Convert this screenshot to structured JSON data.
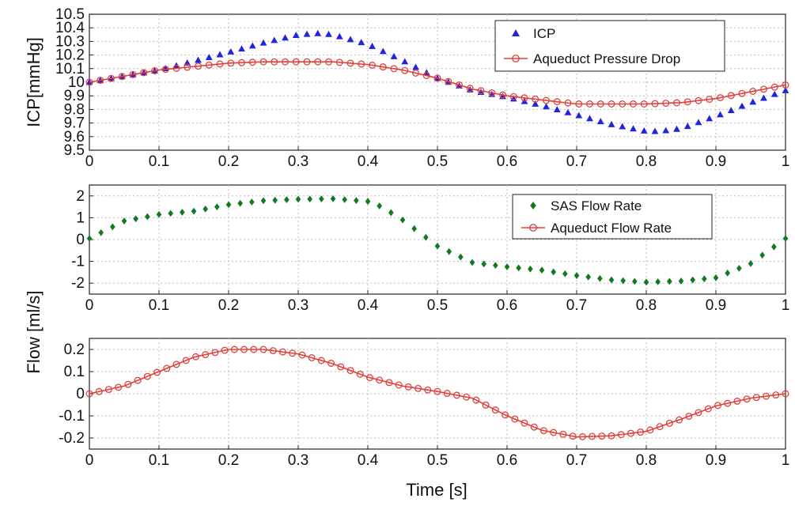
{
  "x_label": "Time [s]",
  "chart_data": [
    {
      "type": "line",
      "ylabel": "ICP[mmHg]",
      "xlim": [
        0,
        1
      ],
      "ylim": [
        9.5,
        10.5
      ],
      "grid": true,
      "legend": "top-right",
      "x_ticks": [
        "0",
        "0.1",
        "0.2",
        "0.3",
        "0.4",
        "0.5",
        "0.6",
        "0.7",
        "0.8",
        "0.9",
        "1"
      ],
      "y_ticks": [
        "10.5",
        "10.4",
        "10.3",
        "10.2",
        "10.1",
        "10",
        "9.9",
        "9.8",
        "9.7",
        "9.6",
        "9.5"
      ],
      "series": [
        {
          "name": "ICP",
          "color": "#1f24e0",
          "marker": "triangle",
          "x": [
            0,
            0.1,
            0.2,
            0.25,
            0.3,
            0.33,
            0.35,
            0.4,
            0.45,
            0.5,
            0.55,
            0.6,
            0.65,
            0.7,
            0.75,
            0.8,
            0.82,
            0.85,
            0.9,
            0.95,
            1.0
          ],
          "y": [
            10.0,
            10.09,
            10.22,
            10.29,
            10.35,
            10.36,
            10.35,
            10.28,
            10.16,
            10.03,
            9.94,
            9.89,
            9.83,
            9.76,
            9.69,
            9.64,
            9.64,
            9.66,
            9.75,
            9.85,
            9.94
          ]
        },
        {
          "name": "Aqueduct Pressure Drop",
          "color": "#e0403a",
          "marker": "circle",
          "x": [
            0,
            0.1,
            0.2,
            0.25,
            0.3,
            0.35,
            0.4,
            0.45,
            0.5,
            0.55,
            0.6,
            0.65,
            0.7,
            0.75,
            0.8,
            0.85,
            0.9,
            0.95,
            1.0
          ],
          "y": [
            10.0,
            10.09,
            10.14,
            10.15,
            10.15,
            10.15,
            10.13,
            10.09,
            10.03,
            9.95,
            9.9,
            9.87,
            9.84,
            9.84,
            9.84,
            9.85,
            9.88,
            9.93,
            9.98
          ]
        }
      ]
    },
    {
      "type": "scatter",
      "ylabel": "",
      "xlim": [
        0,
        1
      ],
      "ylim": [
        -2.5,
        2.5
      ],
      "grid": true,
      "legend": "top-right",
      "x_ticks": [
        "0",
        "0.1",
        "0.2",
        "0.3",
        "0.4",
        "0.5",
        "0.6",
        "0.7",
        "0.8",
        "0.9",
        "1"
      ],
      "y_ticks": [
        "2",
        "1",
        "0",
        "-1",
        "-2"
      ],
      "series": [
        {
          "name": "SAS Flow Rate",
          "color": "#117a1e",
          "marker": "diamond",
          "x": [
            0,
            0.05,
            0.1,
            0.15,
            0.2,
            0.25,
            0.3,
            0.35,
            0.4,
            0.42,
            0.45,
            0.5,
            0.55,
            0.6,
            0.65,
            0.7,
            0.75,
            0.8,
            0.85,
            0.9,
            0.95,
            1.0
          ],
          "y": [
            0.05,
            0.85,
            1.15,
            1.3,
            1.6,
            1.78,
            1.85,
            1.87,
            1.75,
            1.5,
            0.9,
            -0.3,
            -1.05,
            -1.25,
            -1.4,
            -1.65,
            -1.85,
            -1.95,
            -1.9,
            -1.75,
            -1.1,
            0.05
          ]
        },
        {
          "name": "Aqueduct Flow Rate",
          "color": "#e0403a",
          "marker": "circle",
          "x": [],
          "y": []
        }
      ]
    },
    {
      "type": "line",
      "ylabel": "Flow [ml/s]",
      "xlim": [
        0,
        1
      ],
      "ylim": [
        -0.25,
        0.25
      ],
      "grid": true,
      "x_ticks": [
        "0",
        "0.1",
        "0.2",
        "0.3",
        "0.4",
        "0.5",
        "0.6",
        "0.7",
        "0.8",
        "0.9",
        "1"
      ],
      "y_ticks": [
        "0.2",
        "0.1",
        "0",
        "-0.1",
        "-0.2"
      ],
      "series": [
        {
          "name": "Aqueduct Flow Rate",
          "color": "#e0403a",
          "marker": "circle",
          "x": [
            0,
            0.05,
            0.1,
            0.15,
            0.2,
            0.25,
            0.3,
            0.35,
            0.4,
            0.45,
            0.5,
            0.55,
            0.6,
            0.65,
            0.7,
            0.75,
            0.8,
            0.85,
            0.9,
            0.95,
            1.0
          ],
          "y": [
            0.0,
            0.035,
            0.1,
            0.165,
            0.2,
            0.2,
            0.18,
            0.135,
            0.075,
            0.035,
            0.01,
            -0.02,
            -0.1,
            -0.165,
            -0.195,
            -0.19,
            -0.17,
            -0.115,
            -0.055,
            -0.02,
            0.0
          ]
        }
      ]
    }
  ]
}
